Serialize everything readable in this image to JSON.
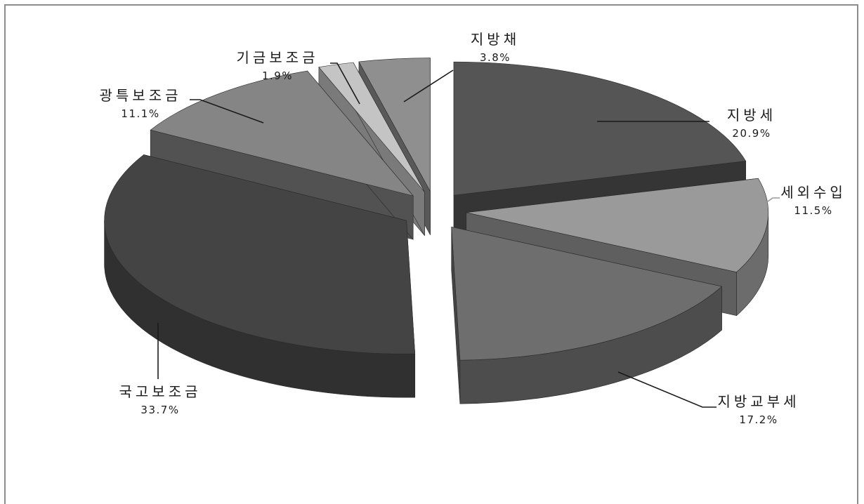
{
  "chart_data": {
    "type": "pie",
    "style": "3d-exploded",
    "slices": [
      {
        "label": "지방세",
        "value": 20.9,
        "value_label": "20.9%",
        "color": "#555555"
      },
      {
        "label": "세외수입",
        "value": 11.5,
        "value_label": "11.5%",
        "color": "#9a9a9a"
      },
      {
        "label": "지방교부세",
        "value": 17.2,
        "value_label": "17.2%",
        "color": "#6e6e6e"
      },
      {
        "label": "국고보조금",
        "value": 33.7,
        "value_label": "33.7%",
        "color": "#444444"
      },
      {
        "label": "광특보조금",
        "value": 11.1,
        "value_label": "11.1%",
        "color": "#858585"
      },
      {
        "label": "기금보조금",
        "value": 1.9,
        "value_label": "1.9%",
        "color": "#c4c4c4"
      },
      {
        "label": "지방채",
        "value": 3.8,
        "value_label": "3.8%",
        "color": "#8f8f8f"
      }
    ],
    "legend": "none"
  }
}
